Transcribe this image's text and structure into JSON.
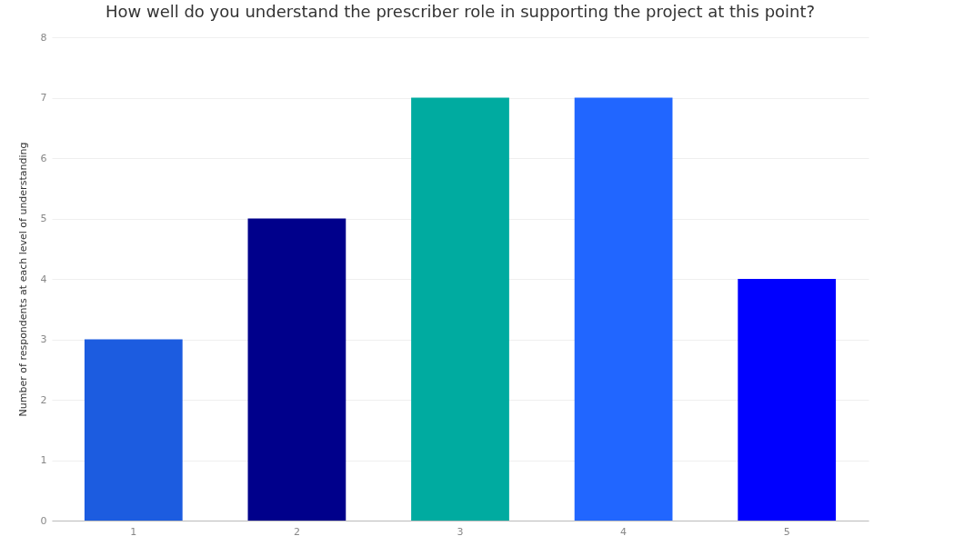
{
  "chart_data": {
    "type": "bar",
    "title": "How well do you understand the prescriber role in supporting the project at this point?",
    "ylabel": "Number of respondents at each level of understanding",
    "categories": [
      "1",
      "2",
      "3",
      "4",
      "5"
    ],
    "values": [
      3,
      5,
      7,
      7,
      4
    ],
    "colors": [
      "#1c5ce0",
      "#00008b",
      "#00aba0",
      "#2166ff",
      "#0000ff"
    ],
    "ylim": [
      0,
      8
    ],
    "yticks": [
      0,
      1,
      2,
      3,
      4,
      5,
      6,
      7,
      8
    ],
    "grid": "y"
  }
}
